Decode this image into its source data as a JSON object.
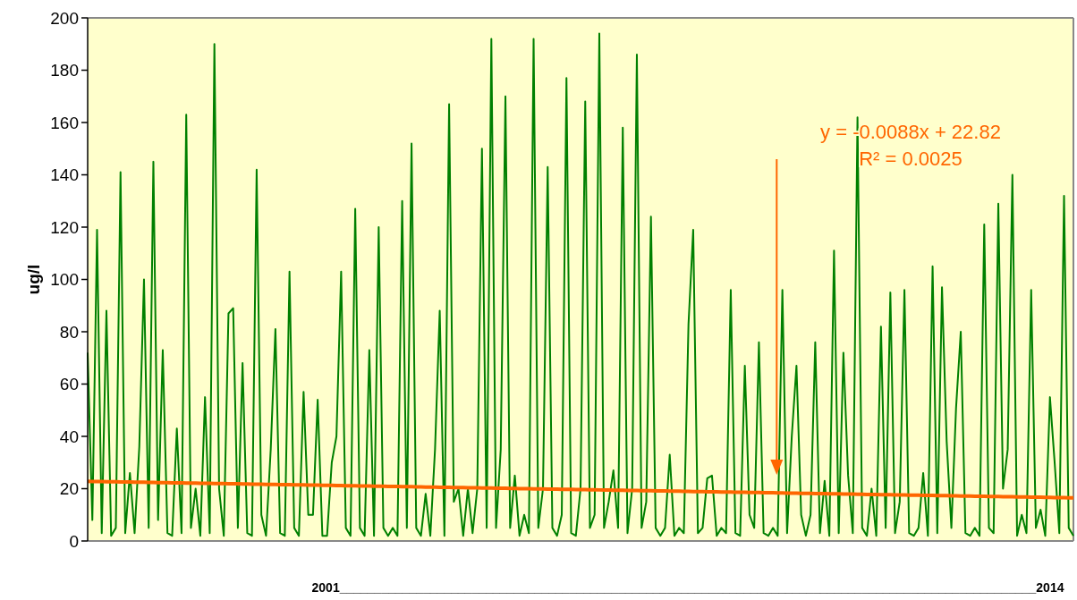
{
  "chart_data": {
    "type": "line",
    "ylabel": "ug/l",
    "xlabel": "2001____________________________________________________________________________________________________2014",
    "categories": [
      null,
      null,
      null,
      null,
      null,
      null,
      null,
      null,
      null,
      null,
      null,
      null,
      null,
      null,
      null,
      null,
      null,
      null,
      null,
      null,
      null,
      null,
      null,
      null,
      null,
      null,
      null,
      null,
      null,
      null,
      null,
      null,
      null,
      null,
      null,
      null,
      null,
      null,
      null,
      null,
      null,
      null,
      null,
      null,
      null,
      null,
      null,
      null,
      null,
      null,
      null,
      null,
      null,
      null,
      null,
      null,
      null,
      null,
      null,
      null,
      null,
      null,
      null,
      null,
      null,
      null,
      null,
      null,
      null,
      null,
      null,
      null,
      null,
      null,
      null,
      null,
      null,
      null,
      null,
      null,
      null,
      null,
      null,
      null,
      null,
      null,
      null,
      null,
      null,
      null,
      null,
      null,
      null,
      null,
      null,
      null,
      null,
      null,
      null,
      null,
      null,
      null,
      null,
      null,
      null,
      null,
      null,
      null,
      null,
      null,
      null,
      null,
      null,
      null,
      null,
      null,
      null,
      null,
      null,
      null,
      null,
      null,
      null,
      null,
      null,
      null,
      null,
      null,
      null,
      null,
      null,
      null,
      null,
      null,
      null,
      null,
      null,
      null,
      null,
      null,
      null,
      null,
      null,
      null,
      null,
      null,
      null,
      null,
      null,
      null,
      null,
      null,
      null,
      null,
      null,
      null,
      null,
      null,
      null,
      null,
      null,
      null,
      null,
      null,
      null,
      null,
      null,
      null,
      null,
      null,
      null,
      null,
      null,
      null,
      null,
      null,
      null,
      null,
      null,
      null,
      null,
      null,
      null,
      null,
      null,
      null,
      null,
      null,
      null,
      null,
      null,
      null,
      null,
      null,
      null,
      null,
      null,
      null,
      null,
      null,
      null,
      null,
      null,
      null,
      null,
      null,
      null,
      null,
      null,
      null,
      null
    ],
    "series": [
      {
        "color": "#008000",
        "values": [
          72,
          8,
          119,
          3,
          88,
          2,
          5,
          141,
          3,
          26,
          3,
          36,
          100,
          5,
          145,
          8,
          73,
          3,
          2,
          43,
          3,
          163,
          5,
          20,
          2,
          55,
          3,
          190,
          20,
          2,
          87,
          89,
          5,
          68,
          3,
          2,
          142,
          10,
          2,
          35,
          81,
          3,
          2,
          103,
          5,
          2,
          57,
          10,
          10,
          54,
          2,
          2,
          30,
          40,
          103,
          5,
          2,
          127,
          5,
          2,
          73,
          2,
          120,
          5,
          2,
          5,
          2,
          130,
          5,
          152,
          5,
          2,
          18,
          2,
          35,
          88,
          2,
          167,
          15,
          20,
          2,
          20,
          3,
          20,
          150,
          5,
          192,
          5,
          35,
          170,
          5,
          25,
          2,
          10,
          3,
          192,
          5,
          20,
          143,
          5,
          2,
          10,
          177,
          3,
          2,
          20,
          168,
          5,
          10,
          194,
          5,
          15,
          27,
          5,
          158,
          3,
          20,
          186,
          5,
          15,
          124,
          5,
          2,
          5,
          33,
          2,
          5,
          3,
          83,
          119,
          3,
          5,
          24,
          25,
          2,
          5,
          3,
          96,
          3,
          2,
          67,
          10,
          5,
          76,
          3,
          2,
          5,
          2,
          96,
          3,
          40,
          67,
          10,
          2,
          10,
          76,
          3,
          23,
          2,
          111,
          3,
          72,
          25,
          3,
          162,
          5,
          2,
          20,
          2,
          82,
          5,
          95,
          3,
          15,
          96,
          3,
          2,
          5,
          26,
          2,
          105,
          3,
          97,
          38,
          5,
          51,
          80,
          3,
          2,
          5,
          2,
          121,
          5,
          3,
          129,
          20,
          35,
          140,
          2,
          10,
          3,
          96,
          5,
          12,
          2,
          55,
          30,
          3,
          132,
          5,
          2
        ]
      },
      {
        "type": "line",
        "color": "#ff6600",
        "values": [
          22.8,
          22.77,
          22.74,
          22.71,
          22.68,
          22.65,
          22.62,
          22.59,
          22.56,
          22.53,
          22.5,
          22.47,
          22.44,
          22.41,
          22.38,
          22.35,
          22.32,
          22.29,
          22.26,
          22.23,
          22.2,
          22.17,
          22.14,
          22.11,
          22.08,
          22.05,
          22.02,
          21.99,
          21.96,
          21.93,
          21.9,
          21.87,
          21.84,
          21.81,
          21.78,
          21.75,
          21.72,
          21.69,
          21.66,
          21.63,
          21.6,
          21.57,
          21.54,
          21.51,
          21.48,
          21.45,
          21.42,
          21.39,
          21.36,
          21.33,
          21.3,
          21.27,
          21.24,
          21.21,
          21.18,
          21.15,
          21.12,
          21.09,
          21.06,
          21.03,
          21,
          20.97,
          20.94,
          20.91,
          20.88,
          20.85,
          20.82,
          20.79,
          20.76,
          20.73,
          20.7,
          20.67,
          20.64,
          20.61,
          20.58,
          20.55,
          20.52,
          20.49,
          20.46,
          20.43,
          20.4,
          20.37,
          20.34,
          20.31,
          20.28,
          20.25,
          20.22,
          20.19,
          20.16,
          20.13,
          20.1,
          20.07,
          20.04,
          20.01,
          19.98,
          19.95,
          19.92,
          19.89,
          19.86,
          19.83,
          19.8,
          19.77,
          19.74,
          19.71,
          19.68,
          19.65,
          19.62,
          19.59,
          19.56,
          19.53,
          19.5,
          19.47,
          19.44,
          19.41,
          19.38,
          19.35,
          19.32,
          19.29,
          19.26,
          19.23,
          19.2,
          19.17,
          19.14,
          19.11,
          19.08,
          19.05,
          19.02,
          18.99,
          18.96,
          18.93,
          18.9,
          18.87,
          18.84,
          18.81,
          18.78,
          18.75,
          18.72,
          18.69,
          18.66,
          18.63,
          18.6,
          18.57,
          18.54,
          18.51,
          18.48,
          18.45,
          18.42,
          18.39,
          18.36,
          18.33,
          18.3,
          18.27,
          18.24,
          18.21,
          18.18,
          18.15,
          18.12,
          18.09,
          18.06,
          18.03,
          18,
          17.97,
          17.94,
          17.91,
          17.88,
          17.85,
          17.82,
          17.79,
          17.76,
          17.73,
          17.7,
          17.67,
          17.64,
          17.61,
          17.58,
          17.55,
          17.52,
          17.49,
          17.46,
          17.43,
          17.4,
          17.37,
          17.34,
          17.31,
          17.28,
          17.25,
          17.22,
          17.19,
          17.16,
          17.13,
          17.1,
          17.07,
          17.04,
          17.01,
          16.98,
          16.95,
          16.92,
          16.89,
          16.86,
          16.83,
          16.8,
          16.77,
          16.74,
          16.71,
          16.68,
          16.65,
          16.62,
          16.59,
          16.56,
          16.53,
          16.5
        ]
      }
    ],
    "ylim": [
      0,
      200
    ],
    "yticks": [
      0,
      20,
      40,
      60,
      80,
      100,
      120,
      140,
      160,
      180,
      200
    ],
    "grid": false,
    "annotations": [
      "y = -0.0088x + 22.82",
      "R² = 0.0025"
    ]
  }
}
